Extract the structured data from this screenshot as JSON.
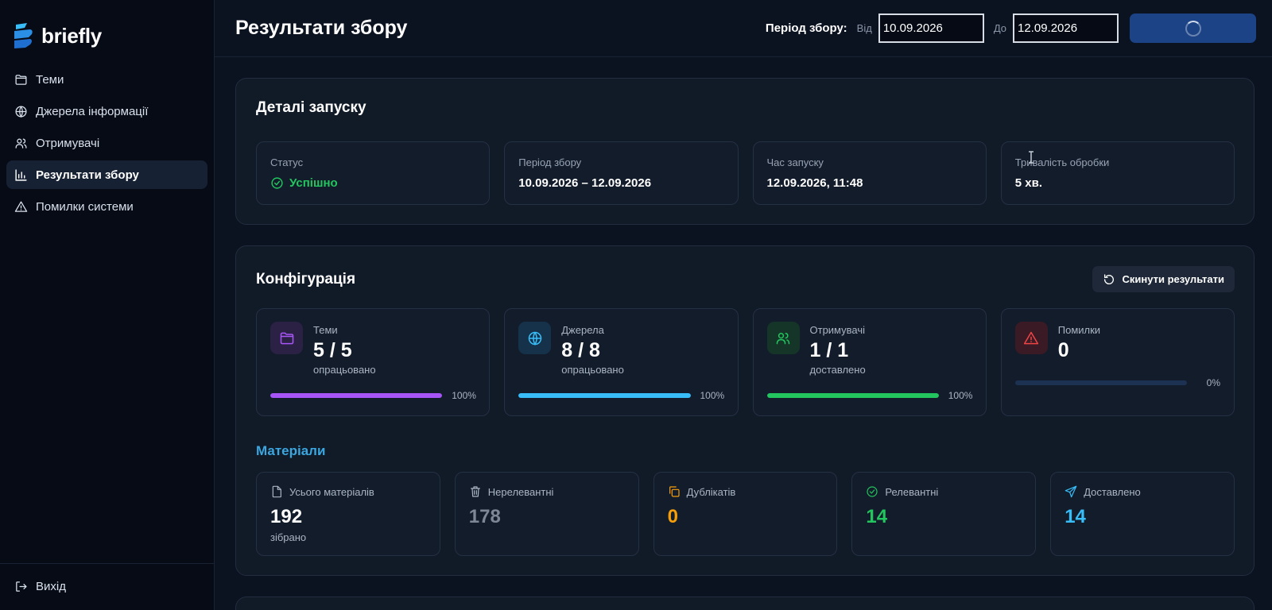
{
  "app": {
    "name": "briefly"
  },
  "sidebar": {
    "items": [
      {
        "label": "Теми",
        "icon": "folder-icon",
        "active": false
      },
      {
        "label": "Джерела інформації",
        "icon": "globe-icon",
        "active": false
      },
      {
        "label": "Отримувачі",
        "icon": "users-icon",
        "active": false
      },
      {
        "label": "Результати збору",
        "icon": "bar-chart-icon",
        "active": true
      },
      {
        "label": "Помилки системи",
        "icon": "warning-icon",
        "active": false
      }
    ],
    "logout_label": "Вихід"
  },
  "header": {
    "title": "Результати збору",
    "period_label": "Період збору:",
    "from_label": "Від",
    "from_value": "10.09.2026",
    "to_label": "До",
    "to_value": "12.09.2026",
    "run_button_state": "loading"
  },
  "details": {
    "title": "Деталі запуску",
    "items": [
      {
        "label": "Статус",
        "value": "Успішно",
        "status": "success"
      },
      {
        "label": "Період збору",
        "value": "10.09.2026 – 12.09.2026"
      },
      {
        "label": "Час запуску",
        "value": "12.09.2026, 11:48"
      },
      {
        "label": "Тривалість обробки",
        "value": "5 хв."
      }
    ]
  },
  "config": {
    "title": "Конфігурація",
    "reset_label": "Скинути результати",
    "stats": [
      {
        "label": "Теми",
        "value": "5 / 5",
        "sub": "опрацьовано",
        "percent": 100,
        "percent_label": "100%",
        "color": "#a855f7",
        "icon": "folder-icon"
      },
      {
        "label": "Джерела",
        "value": "8 / 8",
        "sub": "опрацьовано",
        "percent": 100,
        "percent_label": "100%",
        "color": "#38bdf8",
        "icon": "globe-icon"
      },
      {
        "label": "Отримувачі",
        "value": "1 / 1",
        "sub": "доставлено",
        "percent": 100,
        "percent_label": "100%",
        "color": "#22c55e",
        "icon": "users-icon"
      },
      {
        "label": "Помилки",
        "value": "0",
        "sub": "",
        "percent": 0,
        "percent_label": "0%",
        "color": "#ef4444",
        "icon": "warning-icon"
      }
    ]
  },
  "materials": {
    "title": "Матеріали",
    "items": [
      {
        "label": "Усього матеріалів",
        "value": "192",
        "sub": "зібрано",
        "color": "#ffffff",
        "icon": "document-icon"
      },
      {
        "label": "Нерелевантні",
        "value": "178",
        "sub": "",
        "color": "#7d8796",
        "icon": "trash-icon"
      },
      {
        "label": "Дублікатів",
        "value": "0",
        "sub": "",
        "color": "#f59e0b",
        "icon": "copy-icon"
      },
      {
        "label": "Релевантні",
        "value": "14",
        "sub": "",
        "color": "#22c55e",
        "icon": "check-circle-icon"
      },
      {
        "label": "Доставлено",
        "value": "14",
        "sub": "",
        "color": "#38bdf8",
        "icon": "send-icon"
      }
    ]
  }
}
